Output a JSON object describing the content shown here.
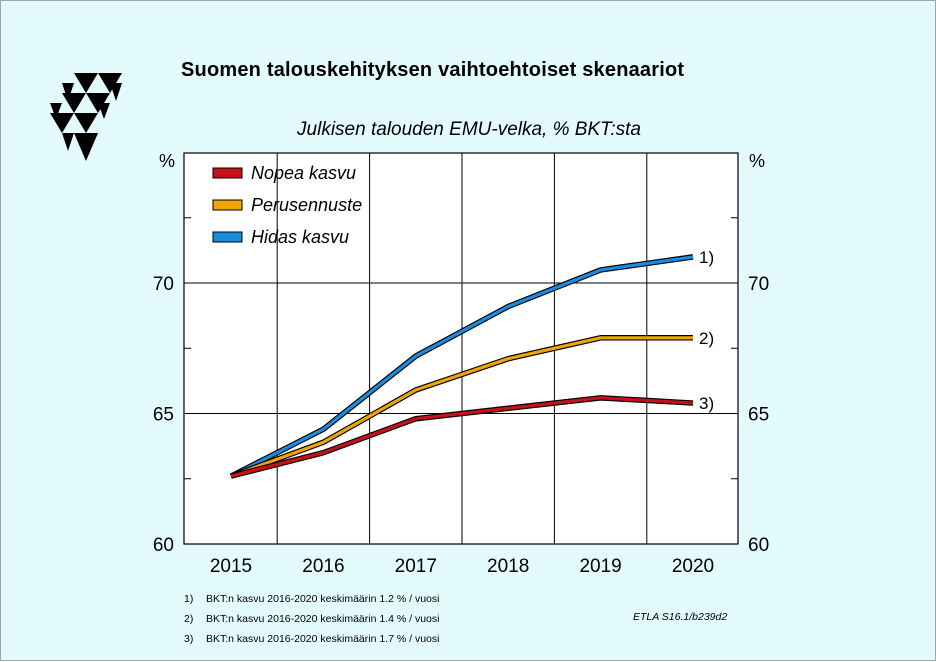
{
  "title": "Suomen talouskehityksen vaihtoehtoiset skenaariot",
  "logo_icon": "etla-triangle-logo-icon",
  "chart_data": {
    "type": "line",
    "title": "Julkisen talouden EMU-velka, % BKT:sta",
    "ylabel_left": "%",
    "ylabel_right": "%",
    "x": [
      2015,
      2016,
      2017,
      2018,
      2019,
      2020
    ],
    "ylim": [
      60,
      75
    ],
    "yticks": [
      60,
      65,
      70
    ],
    "grid": true,
    "legend_position": "top-left",
    "series": [
      {
        "name": "Nopea kasvu",
        "color": "#c8101a",
        "values": [
          62.6,
          63.5,
          64.8,
          65.2,
          65.6,
          65.4
        ],
        "end_label": "3)"
      },
      {
        "name": "Perusennuste",
        "color": "#f0a500",
        "values": [
          62.6,
          63.9,
          65.9,
          67.1,
          67.9,
          67.9
        ],
        "end_label": "2)"
      },
      {
        "name": "Hidas kasvu",
        "color": "#1a8ce0",
        "values": [
          62.6,
          64.4,
          67.2,
          69.1,
          70.5,
          71.0
        ],
        "end_label": "1)"
      }
    ]
  },
  "footnotes": [
    {
      "num": "1)",
      "text": "BKT:n kasvu 2016-2020 keskimäärin 1.2 % / vuosi"
    },
    {
      "num": "2)",
      "text": "BKT:n kasvu 2016-2020 keskimäärin 1.4 % / vuosi"
    },
    {
      "num": "3)",
      "text": "BKT:n kasvu 2016-2020 keskimäärin 1.7 % / vuosi"
    }
  ],
  "source": "ETLA S16.1/b239d2"
}
